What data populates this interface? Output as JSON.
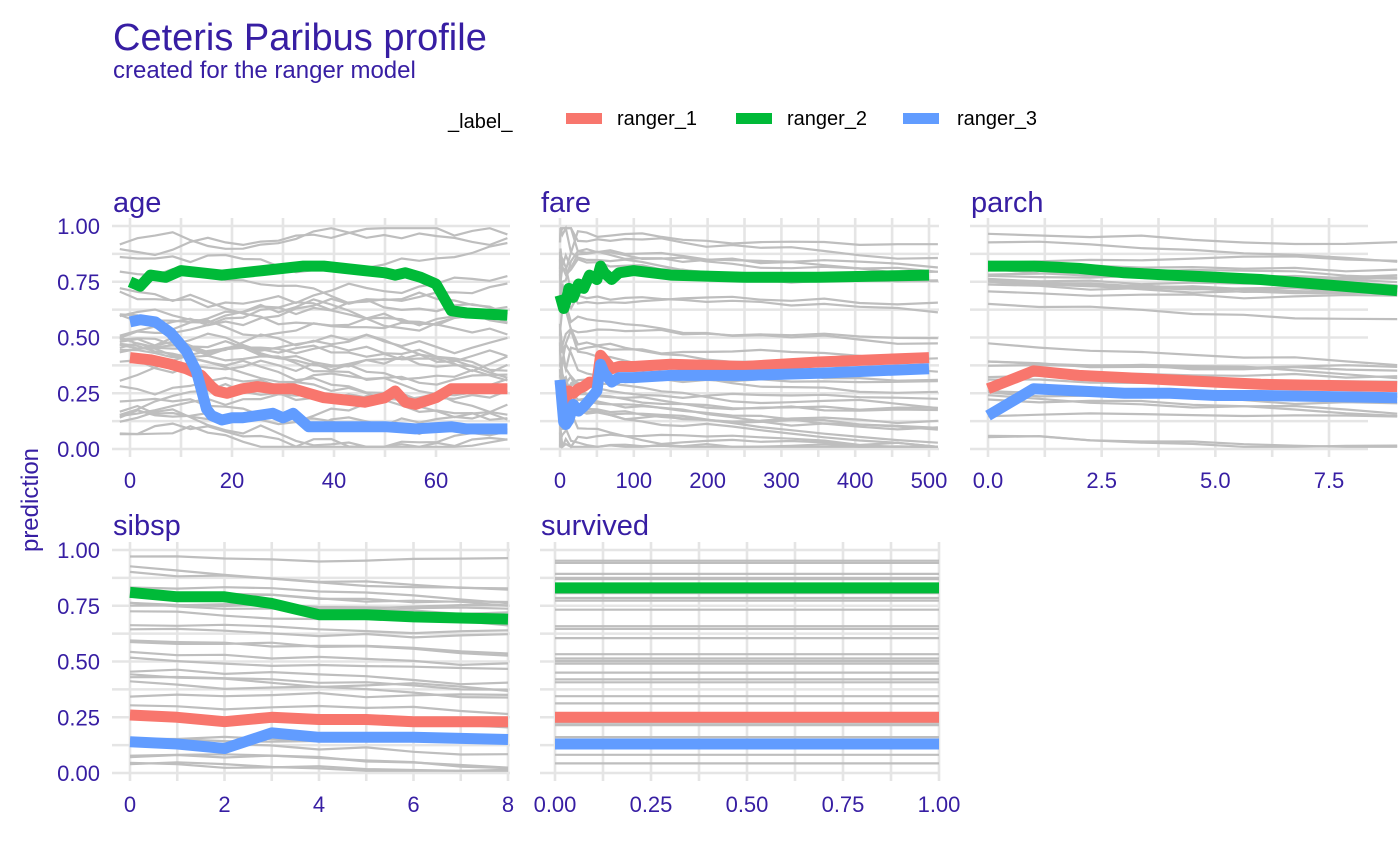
{
  "colors": {
    "title": "#371ea3",
    "grid": "#e5e5e5",
    "background_line": "#bebebe",
    "ranger_1": "#f8766d",
    "ranger_2": "#00ba38",
    "ranger_3": "#619cff"
  },
  "chart_data": {
    "type": "line",
    "title": "Ceteris Paribus profile",
    "subtitle": "created for the ranger model",
    "ylabel": "prediction",
    "ylim": [
      0,
      1
    ],
    "y_ticks": [
      "0.00",
      "0.25",
      "0.50",
      "0.75",
      "1.00"
    ],
    "legend": {
      "title": "_label_",
      "position": "top",
      "entries": [
        "ranger_1",
        "ranger_2",
        "ranger_3"
      ]
    },
    "grid": true,
    "background_profiles_note": "grey lines",
    "panels": [
      {
        "name": "age",
        "xlim": [
          -2,
          74
        ],
        "x_ticks": [
          0,
          20,
          40,
          60
        ],
        "x_tick_labels": [
          "0",
          "20",
          "40",
          "60"
        ],
        "series": [
          {
            "name": "ranger_1",
            "x": [
              0,
              4,
              8,
              11,
              14,
              16,
              17,
              19,
              22,
              25,
              28,
              32,
              35,
              38,
              42,
              46,
              50,
              52,
              54,
              56,
              60,
              63,
              66,
              74
            ],
            "y": [
              0.41,
              0.4,
              0.38,
              0.36,
              0.33,
              0.28,
              0.26,
              0.25,
              0.27,
              0.28,
              0.27,
              0.27,
              0.25,
              0.23,
              0.22,
              0.21,
              0.23,
              0.26,
              0.21,
              0.2,
              0.23,
              0.27,
              0.27,
              0.27
            ]
          },
          {
            "name": "ranger_2",
            "x": [
              0,
              2,
              4,
              7,
              10,
              14,
              18,
              22,
              26,
              30,
              34,
              38,
              42,
              46,
              50,
              52,
              54,
              57,
              60,
              63,
              66,
              74
            ],
            "y": [
              0.75,
              0.73,
              0.78,
              0.77,
              0.8,
              0.79,
              0.78,
              0.79,
              0.8,
              0.81,
              0.82,
              0.82,
              0.81,
              0.8,
              0.79,
              0.78,
              0.79,
              0.77,
              0.74,
              0.62,
              0.61,
              0.6
            ]
          },
          {
            "name": "ranger_3",
            "x": [
              0,
              2,
              5,
              8,
              11,
              13,
              15,
              16,
              18,
              20,
              22,
              25,
              28,
              30,
              32,
              35,
              38,
              42,
              46,
              50,
              56,
              63,
              66,
              74
            ],
            "y": [
              0.57,
              0.58,
              0.57,
              0.52,
              0.44,
              0.35,
              0.18,
              0.15,
              0.13,
              0.14,
              0.14,
              0.15,
              0.16,
              0.14,
              0.16,
              0.1,
              0.1,
              0.1,
              0.1,
              0.1,
              0.09,
              0.1,
              0.09,
              0.09
            ]
          }
        ]
      },
      {
        "name": "fare",
        "xlim": [
          -12,
          512
        ],
        "x_ticks": [
          0,
          100,
          200,
          300,
          400,
          500
        ],
        "x_tick_labels": [
          "0",
          "100",
          "200",
          "300",
          "400",
          "500"
        ],
        "series": [
          {
            "name": "ranger_1",
            "x": [
              0,
              5,
              8,
              12,
              18,
              25,
              32,
              40,
              50,
              55,
              60,
              70,
              80,
              100,
              150,
              250,
              350,
              500
            ],
            "y": [
              0.3,
              0.24,
              0.22,
              0.26,
              0.25,
              0.27,
              0.28,
              0.3,
              0.3,
              0.42,
              0.4,
              0.36,
              0.37,
              0.37,
              0.38,
              0.37,
              0.39,
              0.41
            ]
          },
          {
            "name": "ranger_2",
            "x": [
              0,
              5,
              8,
              12,
              18,
              25,
              32,
              40,
              50,
              55,
              60,
              70,
              80,
              100,
              150,
              250,
              350,
              500
            ],
            "y": [
              0.69,
              0.63,
              0.66,
              0.72,
              0.68,
              0.74,
              0.72,
              0.78,
              0.76,
              0.82,
              0.79,
              0.76,
              0.79,
              0.8,
              0.78,
              0.77,
              0.77,
              0.78
            ]
          },
          {
            "name": "ranger_3",
            "x": [
              0,
              5,
              8,
              12,
              18,
              25,
              32,
              40,
              50,
              55,
              60,
              70,
              80,
              100,
              150,
              250,
              350,
              500
            ],
            "y": [
              0.31,
              0.12,
              0.11,
              0.13,
              0.2,
              0.17,
              0.19,
              0.22,
              0.26,
              0.38,
              0.34,
              0.3,
              0.32,
              0.32,
              0.33,
              0.33,
              0.34,
              0.36
            ]
          }
        ]
      },
      {
        "name": "parch",
        "xlim": [
          0,
          9
        ],
        "x_ticks": [
          0,
          2.5,
          5,
          7.5
        ],
        "x_tick_labels": [
          "0.0",
          "2.5",
          "5.0",
          "7.5"
        ],
        "series": [
          {
            "name": "ranger_1",
            "x": [
              0,
              1,
              2,
              3,
              4,
              5,
              6,
              9
            ],
            "y": [
              0.27,
              0.35,
              0.33,
              0.32,
              0.31,
              0.3,
              0.29,
              0.28
            ]
          },
          {
            "name": "ranger_2",
            "x": [
              0,
              1,
              2,
              3,
              4,
              5,
              6,
              9
            ],
            "y": [
              0.82,
              0.82,
              0.81,
              0.79,
              0.78,
              0.77,
              0.76,
              0.71
            ]
          },
          {
            "name": "ranger_3",
            "x": [
              0,
              1,
              2,
              3,
              4,
              5,
              6,
              9
            ],
            "y": [
              0.15,
              0.27,
              0.26,
              0.25,
              0.25,
              0.24,
              0.24,
              0.23
            ]
          }
        ]
      },
      {
        "name": "sibsp",
        "xlim": [
          0,
          8
        ],
        "x_ticks": [
          0,
          2,
          4,
          6,
          8
        ],
        "x_tick_labels": [
          "0",
          "2",
          "4",
          "6",
          "8"
        ],
        "series": [
          {
            "name": "ranger_1",
            "x": [
              0,
              1,
              2,
              3,
              4,
              5,
              6,
              8
            ],
            "y": [
              0.26,
              0.25,
              0.23,
              0.25,
              0.24,
              0.24,
              0.23,
              0.23
            ]
          },
          {
            "name": "ranger_2",
            "x": [
              0,
              1,
              2,
              3,
              4,
              5,
              6,
              8
            ],
            "y": [
              0.81,
              0.79,
              0.79,
              0.76,
              0.71,
              0.71,
              0.7,
              0.69
            ]
          },
          {
            "name": "ranger_3",
            "x": [
              0,
              1,
              2,
              3,
              4,
              5,
              6,
              8
            ],
            "y": [
              0.14,
              0.13,
              0.11,
              0.18,
              0.16,
              0.16,
              0.16,
              0.15
            ]
          }
        ]
      },
      {
        "name": "survived",
        "xlim": [
          0,
          1
        ],
        "x_ticks": [
          0,
          0.25,
          0.5,
          0.75,
          1
        ],
        "x_tick_labels": [
          "0.00",
          "0.25",
          "0.50",
          "0.75",
          "1.00"
        ],
        "series": [
          {
            "name": "ranger_1",
            "x": [
              0,
              1
            ],
            "y": [
              0.25,
              0.25
            ]
          },
          {
            "name": "ranger_2",
            "x": [
              0,
              1
            ],
            "y": [
              0.83,
              0.83
            ]
          },
          {
            "name": "ranger_3",
            "x": [
              0,
              1
            ],
            "y": [
              0.13,
              0.13
            ]
          }
        ]
      }
    ]
  }
}
